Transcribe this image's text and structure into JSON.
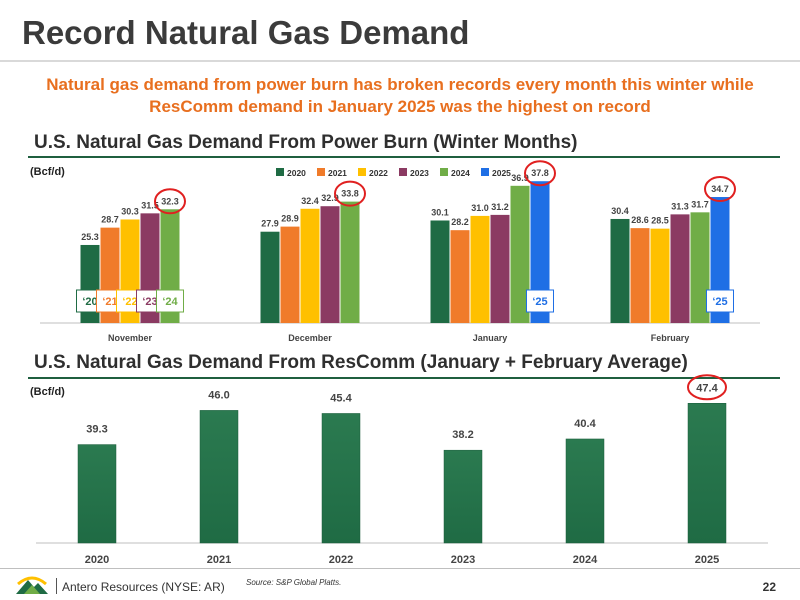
{
  "header": {
    "title": "Record Natural Gas Demand",
    "subtitle_line1": "Natural gas demand from power burn has broken records every month this winter while",
    "subtitle_line2": "ResComm demand in January 2025 was the highest on record"
  },
  "colors": {
    "green_dark": "#1f6b44",
    "orange": "#f07b2a",
    "yellow": "#ffc000",
    "purple": "#8b3a62",
    "green_light": "#70ad47",
    "blue": "#1f6fe5",
    "highlight_red": "#e02020",
    "accent_orange": "#e86f1f"
  },
  "chart_data": [
    {
      "type": "bar",
      "title": "U.S. Natural Gas Demand From Power Burn (Winter Months)",
      "ylabel": "(Bcf/d)",
      "categories": [
        "November",
        "December",
        "January",
        "February"
      ],
      "series": [
        {
          "name": "2020",
          "color": "#1f6b44",
          "values": [
            25.3,
            27.9,
            30.1,
            30.4
          ]
        },
        {
          "name": "2021",
          "color": "#f07b2a",
          "values": [
            28.7,
            28.9,
            28.2,
            28.6
          ]
        },
        {
          "name": "2022",
          "color": "#ffc000",
          "values": [
            30.3,
            32.4,
            31.0,
            28.5
          ]
        },
        {
          "name": "2023",
          "color": "#8b3a62",
          "values": [
            31.5,
            32.9,
            31.2,
            31.3
          ]
        },
        {
          "name": "2024",
          "color": "#70ad47",
          "values": [
            32.3,
            33.8,
            36.9,
            31.7
          ]
        },
        {
          "name": "2025",
          "color": "#1f6fe5",
          "values": [
            null,
            null,
            37.8,
            34.7
          ]
        }
      ],
      "ylim": [
        10,
        40
      ],
      "legend": "top-center",
      "highlighted": [
        {
          "category": "November",
          "series": "2024"
        },
        {
          "category": "December",
          "series": "2024"
        },
        {
          "category": "January",
          "series": "2025"
        },
        {
          "category": "February",
          "series": "2025"
        }
      ],
      "year_tags": [
        {
          "category": "November",
          "series": "2020",
          "label": "‘20"
        },
        {
          "category": "November",
          "series": "2021",
          "label": "‘21"
        },
        {
          "category": "November",
          "series": "2022",
          "label": "‘22"
        },
        {
          "category": "November",
          "series": "2023",
          "label": "‘23"
        },
        {
          "category": "November",
          "series": "2024",
          "label": "‘24"
        },
        {
          "category": "January",
          "series": "2025",
          "label": "‘25"
        },
        {
          "category": "February",
          "series": "2025",
          "label": "‘25"
        }
      ]
    },
    {
      "type": "bar",
      "title": "U.S. Natural Gas Demand From ResComm (January + February Average)",
      "ylabel": "(Bcf/d)",
      "categories": [
        "2020",
        "2021",
        "2022",
        "2023",
        "2024",
        "2025"
      ],
      "values": [
        39.3,
        46.0,
        45.4,
        38.2,
        40.4,
        47.4
      ],
      "color": "#1f6b44",
      "ylim": [
        20,
        50
      ],
      "highlighted": [
        "2025"
      ]
    }
  ],
  "footer": {
    "company": "Antero Resources (NYSE: AR)",
    "source": "Source:  S&P Global Platts.",
    "page": "22"
  }
}
